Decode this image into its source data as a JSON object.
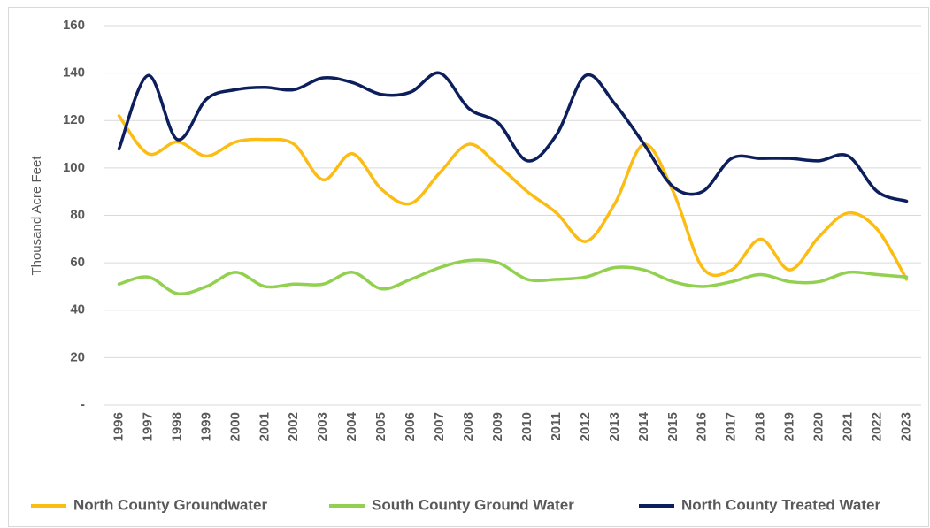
{
  "chart_data": {
    "type": "line",
    "y_label": "Thousand Acre Feet",
    "categories": [
      "1996",
      "1997",
      "1998",
      "1999",
      "2000",
      "2001",
      "2002",
      "2003",
      "2004",
      "2005",
      "2006",
      "2007",
      "2008",
      "2009",
      "2010",
      "2011",
      "2012",
      "2013",
      "2014",
      "2015",
      "2016",
      "2017",
      "2018",
      "2019",
      "2020",
      "2021",
      "2022",
      "2023"
    ],
    "series": [
      {
        "name": "North County Groundwater",
        "color": "#fbbc14",
        "values": [
          122,
          106,
          111,
          105,
          111,
          112,
          110,
          95,
          106,
          91,
          85,
          98,
          110,
          101,
          90,
          81,
          69,
          85,
          110,
          90,
          58,
          57,
          70,
          57,
          71,
          81,
          74,
          53
        ]
      },
      {
        "name": "South County Ground Water",
        "color": "#92d050",
        "values": [
          51,
          54,
          47,
          50,
          56,
          50,
          51,
          51,
          56,
          49,
          53,
          58,
          61,
          60,
          53,
          53,
          54,
          58,
          57,
          52,
          50,
          52,
          55,
          52,
          52,
          56,
          55,
          54
        ]
      },
      {
        "name": "North County Treated Water",
        "color": "#0c1f5c",
        "values": [
          108,
          139,
          112,
          129,
          133,
          134,
          133,
          138,
          136,
          131,
          132,
          140,
          125,
          119,
          103,
          114,
          139,
          127,
          110,
          92,
          90,
          104,
          104,
          104,
          103,
          105,
          90,
          86
        ]
      }
    ],
    "ylim": [
      0,
      160
    ],
    "yticks": [
      {
        "value": 0,
        "label": "-"
      },
      20,
      40,
      60,
      80,
      100,
      120,
      140,
      160
    ],
    "grid": true,
    "legend": "bottom"
  }
}
